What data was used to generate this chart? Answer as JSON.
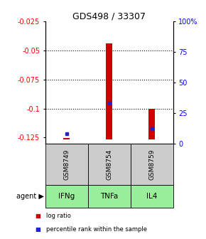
{
  "title": "GDS498 / 33307",
  "samples": [
    "GSM8749",
    "GSM8754",
    "GSM8759"
  ],
  "agents": [
    "IFNg",
    "TNFa",
    "IL4"
  ],
  "log_ratio_bottoms": [
    -0.1265,
    -0.1265,
    -0.1265
  ],
  "log_ratio_tops": [
    -0.1255,
    -0.044,
    -0.1005
  ],
  "percentile_ranks_pct": [
    8,
    33,
    12
  ],
  "ylim_left": [
    -0.13,
    -0.025
  ],
  "ylim_right": [
    0,
    100
  ],
  "left_ticks": [
    -0.125,
    -0.1,
    -0.075,
    -0.05,
    -0.025
  ],
  "right_ticks": [
    0,
    25,
    50,
    75,
    100
  ],
  "dotted_lines": [
    -0.05,
    -0.075,
    -0.1
  ],
  "bar_color": "#cc0000",
  "percentile_color": "#2222cc",
  "agent_bg_color": "#99ee99",
  "sample_bg_color": "#cccccc",
  "legend_log_ratio": "log ratio",
  "legend_percentile": "percentile rank within the sample",
  "agent_label": "agent"
}
